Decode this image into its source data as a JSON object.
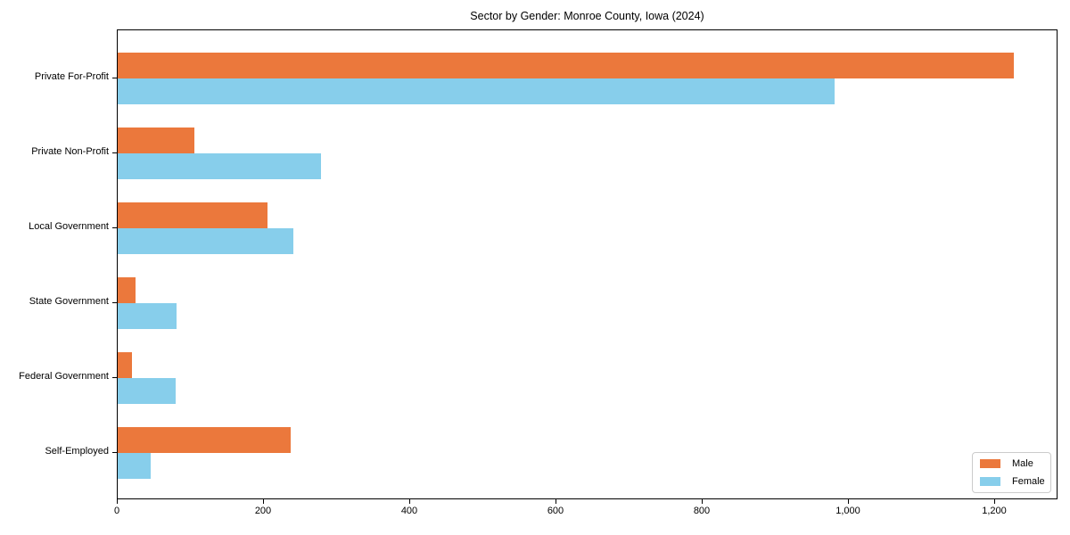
{
  "title": "Sector by Gender: Monroe County, Iowa (2024)",
  "chart_data": {
    "type": "bar",
    "orientation": "horizontal",
    "title": "Sector by Gender: Monroe County, Iowa (2024)",
    "xlabel": "",
    "ylabel": "",
    "categories": [
      "Private For-Profit",
      "Private Non-Profit",
      "Local Government",
      "State Government",
      "Federal Government",
      "Self-Employed"
    ],
    "series": [
      {
        "name": "Male",
        "color": "#EB783C",
        "values": [
          1225,
          105,
          205,
          24,
          20,
          237
        ]
      },
      {
        "name": "Female",
        "color": "#87CEEB",
        "values": [
          980,
          278,
          240,
          80,
          79,
          45
        ]
      }
    ],
    "xlim": [
      0,
      1286
    ],
    "x_ticks": [
      0,
      200,
      400,
      600,
      800,
      1000,
      1200
    ],
    "x_tick_labels": [
      "0",
      "200",
      "400",
      "600",
      "800",
      "1,000",
      "1,200"
    ],
    "grid": false,
    "legend_position": "lower right"
  },
  "legend": {
    "items": [
      {
        "label": "Male",
        "color": "#EB783C"
      },
      {
        "label": "Female",
        "color": "#87CEEB"
      }
    ]
  }
}
